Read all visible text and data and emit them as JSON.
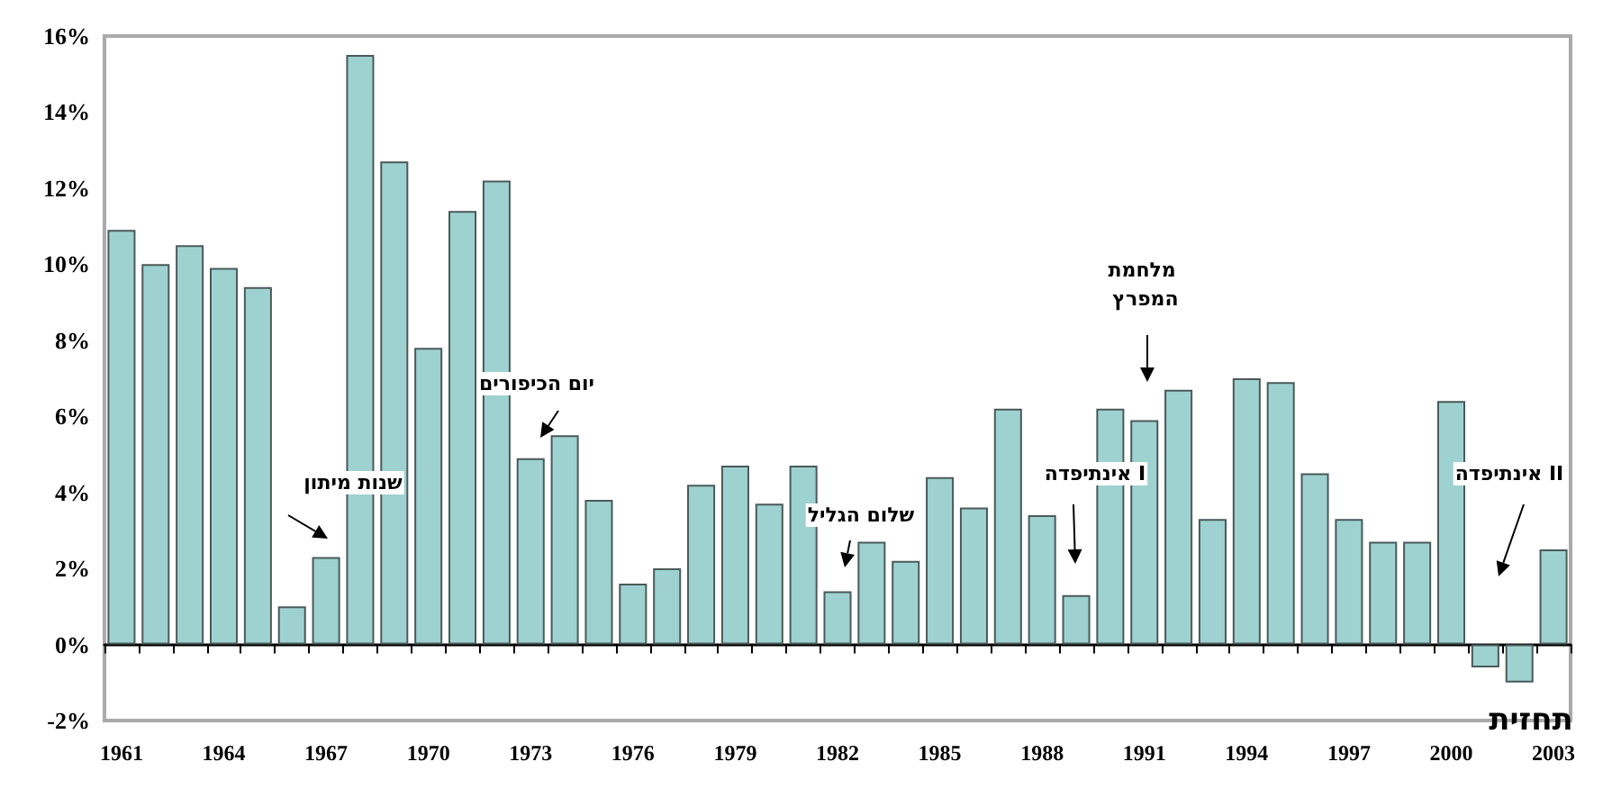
{
  "chart_data": {
    "type": "bar",
    "categories": [
      "1961",
      null,
      null,
      "1964",
      null,
      null,
      "1967",
      null,
      null,
      "1970",
      null,
      null,
      "1973",
      null,
      null,
      "1976",
      null,
      null,
      "1979",
      null,
      null,
      "1982",
      null,
      null,
      "1985",
      null,
      null,
      "1988",
      null,
      null,
      "1991",
      null,
      null,
      "1994",
      null,
      null,
      "1997",
      null,
      null,
      "2000",
      null,
      null,
      "2003"
    ],
    "values": [
      10.9,
      10.0,
      10.5,
      9.9,
      9.4,
      1.0,
      2.3,
      15.5,
      12.7,
      7.8,
      11.4,
      12.2,
      4.9,
      5.5,
      3.8,
      1.6,
      2.0,
      4.2,
      4.7,
      3.7,
      4.7,
      1.4,
      2.7,
      2.2,
      4.4,
      3.6,
      6.2,
      3.4,
      1.3,
      6.2,
      5.9,
      6.7,
      3.3,
      7.0,
      6.9,
      4.5,
      3.3,
      2.7,
      2.7,
      6.4,
      -0.6,
      -1.0,
      2.5
    ],
    "color": "#9ed2d0",
    "ylim": [
      -2,
      16
    ],
    "yticks": [
      {
        "value": -2,
        "label": "-2%"
      },
      {
        "value": 0,
        "label": "0%"
      },
      {
        "value": 2,
        "label": "2%"
      },
      {
        "value": 4,
        "label": "4%"
      },
      {
        "value": 6,
        "label": "6%"
      },
      {
        "value": 8,
        "label": "8%"
      },
      {
        "value": 10,
        "label": "10%"
      },
      {
        "value": 12,
        "label": "12%"
      },
      {
        "value": 14,
        "label": "14%"
      },
      {
        "value": 16,
        "label": "16%"
      }
    ],
    "annotations": [
      "שנות מיתון",
      "יום הכיפורים",
      "שלום הגליל",
      "אינתיפדה I",
      "מלחמת המפרץ",
      "אינתיפדה II",
      "תחזית"
    ]
  }
}
